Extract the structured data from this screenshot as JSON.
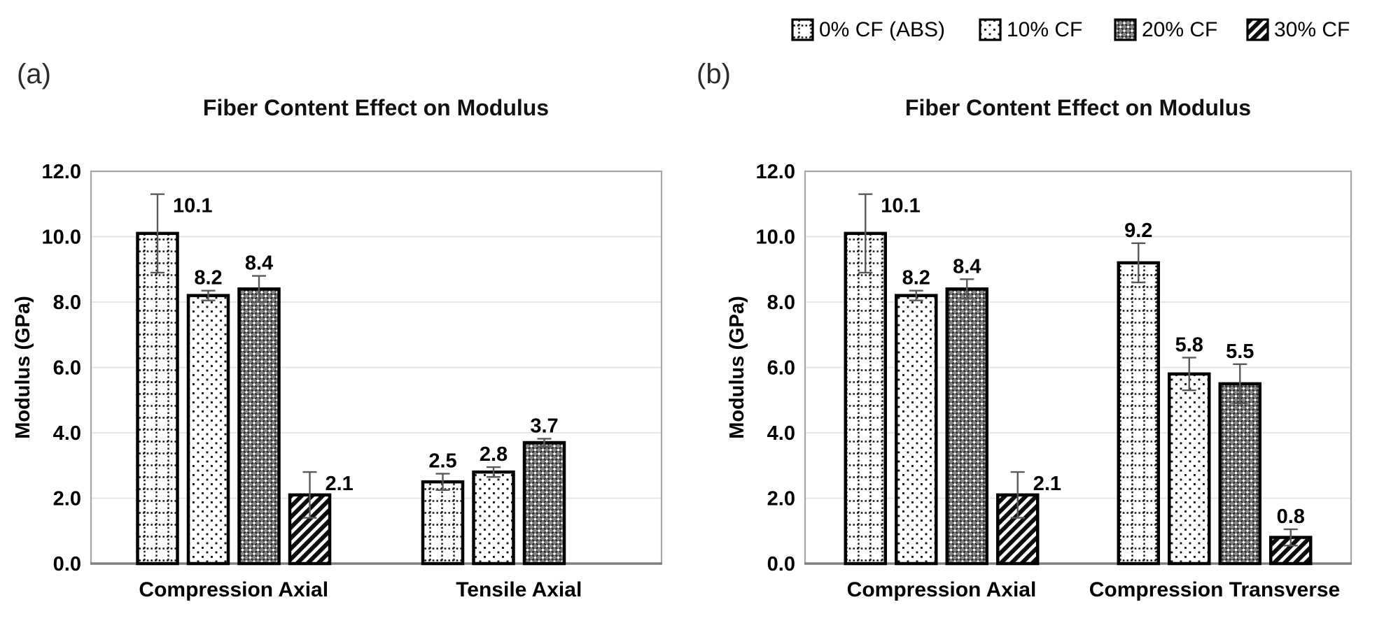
{
  "figure": {
    "panel_a_label": "(a)",
    "panel_b_label": "(b)"
  },
  "legend": {
    "position": "top-right",
    "items": [
      {
        "label": "0% CF (ABS)",
        "pattern": "dotted-grid",
        "icon": "dotted-grid-swatch-icon"
      },
      {
        "label": "10% CF",
        "pattern": "dots",
        "icon": "dots-swatch-icon"
      },
      {
        "label": "20% CF",
        "pattern": "diamond-mesh",
        "icon": "diamond-mesh-swatch-icon"
      },
      {
        "label": "30% CF",
        "pattern": "diagonal-stripe",
        "icon": "diagonal-stripe-swatch-icon"
      }
    ]
  },
  "colors": {
    "text": "#000000",
    "bar_outline": "#000000",
    "gridline": "#e3e3e3",
    "plot_border": "#a6a6a6",
    "axis_line": "#808080",
    "error_bar": "#595959",
    "background": "#ffffff"
  },
  "chart_data": [
    {
      "type": "bar",
      "panel_label": "(a)",
      "title": "Fiber Content Effect on Modulus",
      "xlabel": "",
      "ylabel": "Modulus (GPa)",
      "ylim": [
        0,
        12
      ],
      "ytick_step": 2,
      "ytick_labels": [
        "0.0",
        "2.0",
        "4.0",
        "6.0",
        "8.0",
        "10.0",
        "12.0"
      ],
      "grid": true,
      "legend_position": "shared-top-right",
      "categories": [
        "Compression Axial",
        "Tensile Axial"
      ],
      "series": [
        {
          "name": "0% CF (ABS)",
          "pattern": "dotted-grid",
          "values": [
            10.1,
            2.5
          ],
          "errors": [
            1.2,
            0.25
          ]
        },
        {
          "name": "10% CF",
          "pattern": "dots",
          "values": [
            8.2,
            2.8
          ],
          "errors": [
            0.15,
            0.15
          ]
        },
        {
          "name": "20% CF",
          "pattern": "diamond-mesh",
          "values": [
            8.4,
            3.7
          ],
          "errors": [
            0.4,
            0.12
          ]
        },
        {
          "name": "30% CF",
          "pattern": "diagonal-stripe",
          "values": [
            2.1,
            null
          ],
          "errors": [
            0.7,
            null
          ]
        }
      ],
      "bar_labels": [
        [
          "10.1",
          "2.5"
        ],
        [
          "8.2",
          "2.8"
        ],
        [
          "8.4",
          "3.7"
        ],
        [
          "2.1",
          null
        ]
      ]
    },
    {
      "type": "bar",
      "panel_label": "(b)",
      "title": "Fiber Content Effect on Modulus",
      "xlabel": "",
      "ylabel": "Modulus (GPa)",
      "ylim": [
        0,
        12
      ],
      "ytick_step": 2,
      "ytick_labels": [
        "0.0",
        "2.0",
        "4.0",
        "6.0",
        "8.0",
        "10.0",
        "12.0"
      ],
      "grid": true,
      "legend_position": "shared-top-right",
      "categories": [
        "Compression Axial",
        "Compression Transverse"
      ],
      "series": [
        {
          "name": "0% CF (ABS)",
          "pattern": "dotted-grid",
          "values": [
            10.1,
            9.2
          ],
          "errors": [
            1.2,
            0.6
          ]
        },
        {
          "name": "10% CF",
          "pattern": "dots",
          "values": [
            8.2,
            5.8
          ],
          "errors": [
            0.15,
            0.5
          ]
        },
        {
          "name": "20% CF",
          "pattern": "diamond-mesh",
          "values": [
            8.4,
            5.5
          ],
          "errors": [
            0.3,
            0.6
          ]
        },
        {
          "name": "30% CF",
          "pattern": "diagonal-stripe",
          "values": [
            2.1,
            0.8
          ],
          "errors": [
            0.7,
            0.25
          ]
        }
      ],
      "bar_labels": [
        [
          "10.1",
          "9.2"
        ],
        [
          "8.2",
          "5.8"
        ],
        [
          "8.4",
          "5.5"
        ],
        [
          "2.1",
          "0.8"
        ]
      ]
    }
  ]
}
